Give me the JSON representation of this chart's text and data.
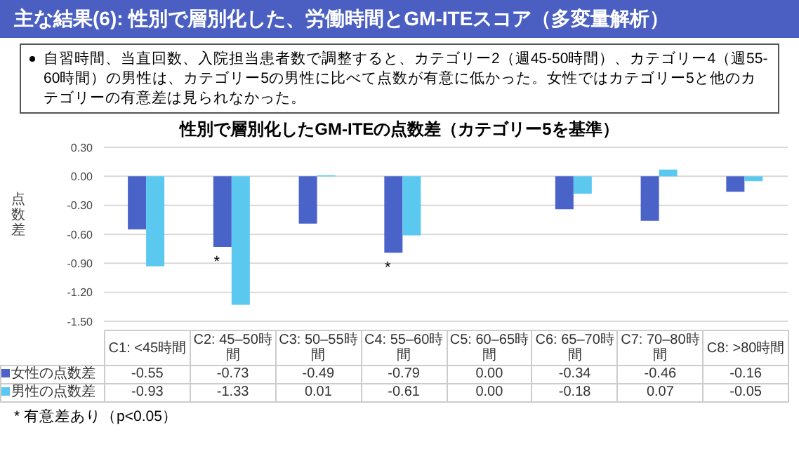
{
  "chart_data": {
    "type": "bar",
    "title": "性別で層別化したGM-ITEの点数差（カテゴリー5を基準）",
    "subtitle": "主な結果(6): 性別で層別化した、労働時間とGM-ITEスコア（多変量解析）",
    "annotations": [
      "自習時間、当直回数、入院担当患者数で調整すると、カテゴリー2（週45-50時間）、カテゴリー4（週55-60時間）の男性は、カテゴリー5の男性に比べて点数が有意に低かった。女性ではカテゴリー5と他のカテゴリーの有意差は見られなかった。",
      {
        "text": "*",
        "x": "C2: 45–50時間",
        "y": -0.73
      },
      {
        "text": "*",
        "x": "C4: 55–60時間",
        "y": -0.79
      },
      "* 有意差あり（p<0.05）"
    ],
    "ylabel": "点数差",
    "categories": [
      "C1: <45時間",
      "C2: 45–50時間",
      "C3: 50–55時間",
      "C4: 55–60時間",
      "C5: 60–65時間",
      "C6: 65–70時間",
      "C7: 70–80時間",
      "C8: >80時間"
    ],
    "series": [
      {
        "name": "女性の点数差",
        "color": "#4a63c8",
        "values": [
          -0.55,
          -0.73,
          -0.49,
          -0.79,
          0.0,
          -0.34,
          -0.46,
          -0.16
        ],
        "value_labels": [
          "-0.55",
          "-0.73",
          "-0.49",
          "-0.79",
          "0.00",
          "-0.34",
          "-0.46",
          "-0.16"
        ]
      },
      {
        "name": "男性の点数差",
        "color": "#5bc8f0",
        "values": [
          -0.93,
          -1.33,
          0.01,
          -0.61,
          0.0,
          -0.18,
          0.07,
          -0.05
        ],
        "value_labels": [
          "-0.93",
          "-1.33",
          "0.01",
          "-0.61",
          "0.00",
          "-0.18",
          "0.07",
          "-0.05"
        ]
      }
    ],
    "ylim": [
      -1.5,
      0.3
    ],
    "yticks": [
      {
        "value": 0.3,
        "label": "0.30"
      },
      {
        "value": 0,
        "label": "0.00"
      },
      {
        "value": -0.3,
        "label": "-0.30"
      },
      {
        "value": -0.6,
        "label": "-0.60"
      },
      {
        "value": -0.9,
        "label": "-0.90"
      },
      {
        "value": -1.2,
        "label": "-1.20"
      },
      {
        "value": -1.5,
        "label": "-1.50"
      }
    ],
    "grid": "y",
    "legend": "bottom"
  }
}
